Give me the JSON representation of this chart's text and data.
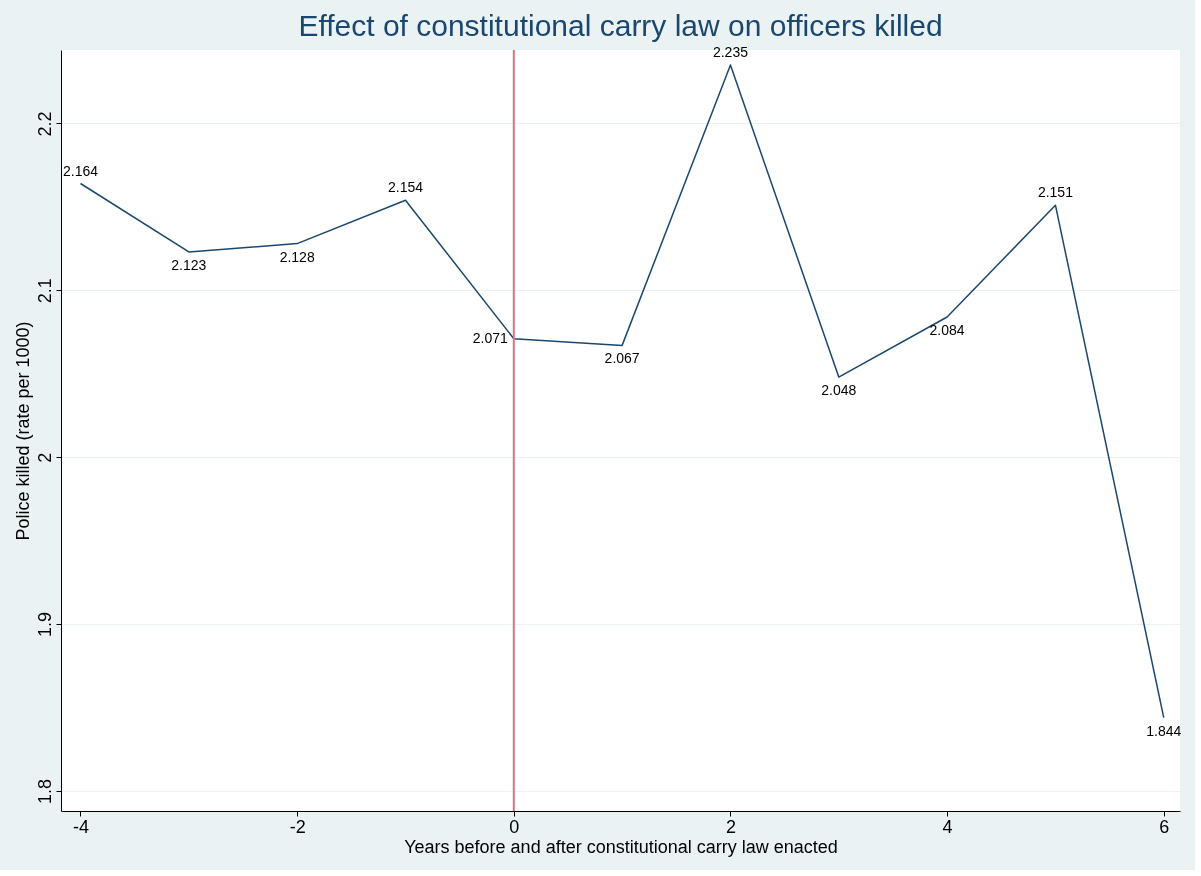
{
  "chart_data": {
    "type": "line",
    "title": "Effect of constitutional carry law on officers killed",
    "xlabel": "Years before and after constitutional carry law enacted",
    "ylabel": "Police killed (rate per 1000)",
    "x": [
      -4,
      -3,
      -2,
      -1,
      0,
      1,
      2,
      3,
      4,
      5,
      6
    ],
    "series": [
      {
        "color": "#1a476f",
        "values": [
          2.164,
          2.123,
          2.128,
          2.154,
          2.071,
          2.067,
          2.235,
          2.048,
          2.084,
          2.151,
          1.844
        ]
      }
    ],
    "xlim": [
      -4.18,
      6.15
    ],
    "xticks": [
      -4,
      -2,
      0,
      2,
      4,
      6
    ],
    "ylim": [
      1.788,
      2.244
    ],
    "yticks": [
      1.8,
      1.9,
      2,
      2.1,
      2.2
    ],
    "ref_lines": [
      {
        "axis": "x",
        "value": 0,
        "color": "#e0707f"
      }
    ],
    "data_labels": true,
    "grid": "y",
    "marker": "none",
    "line_style": "solid"
  }
}
